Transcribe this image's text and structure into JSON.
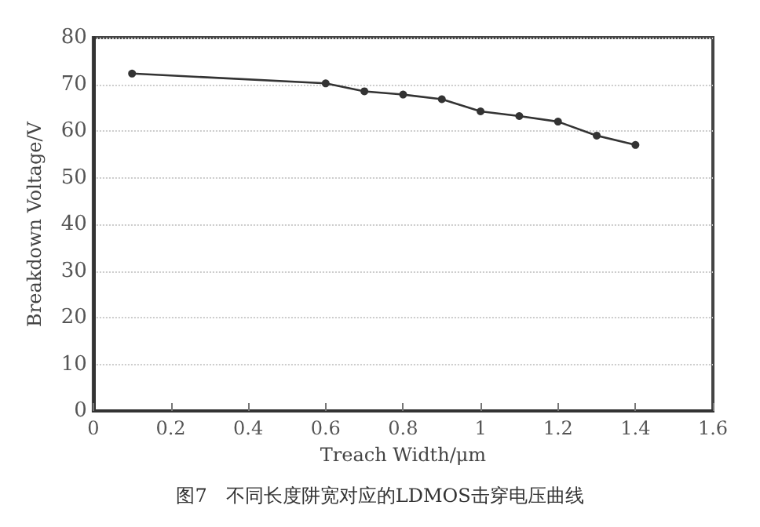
{
  "chart_data": {
    "type": "line",
    "xlabel": "Treach Width/μm",
    "ylabel": "Breakdown Voltage/V",
    "annotations": [
      "图7　不同长度阱宽对应的LDMOS击穿电压曲线"
    ],
    "x": [
      0.1,
      0.6,
      0.7,
      0.8,
      0.9,
      1.0,
      1.1,
      1.2,
      1.3,
      1.4
    ],
    "series": [
      {
        "color": "#333333",
        "values": [
          72.3,
          70.2,
          68.5,
          67.8,
          66.8,
          64.2,
          63.2,
          62,
          59,
          57
        ]
      }
    ],
    "xlim": [
      0,
      1.6
    ],
    "xticks": [
      0,
      0.2,
      0.4,
      0.6,
      0.8,
      1,
      1.2,
      1.4,
      1.6
    ],
    "ylim": [
      0,
      80
    ],
    "yticks": [
      0,
      10,
      20,
      30,
      40,
      50,
      60,
      70,
      80
    ],
    "grid": "y",
    "marker": "circle",
    "line_style": "solid"
  }
}
